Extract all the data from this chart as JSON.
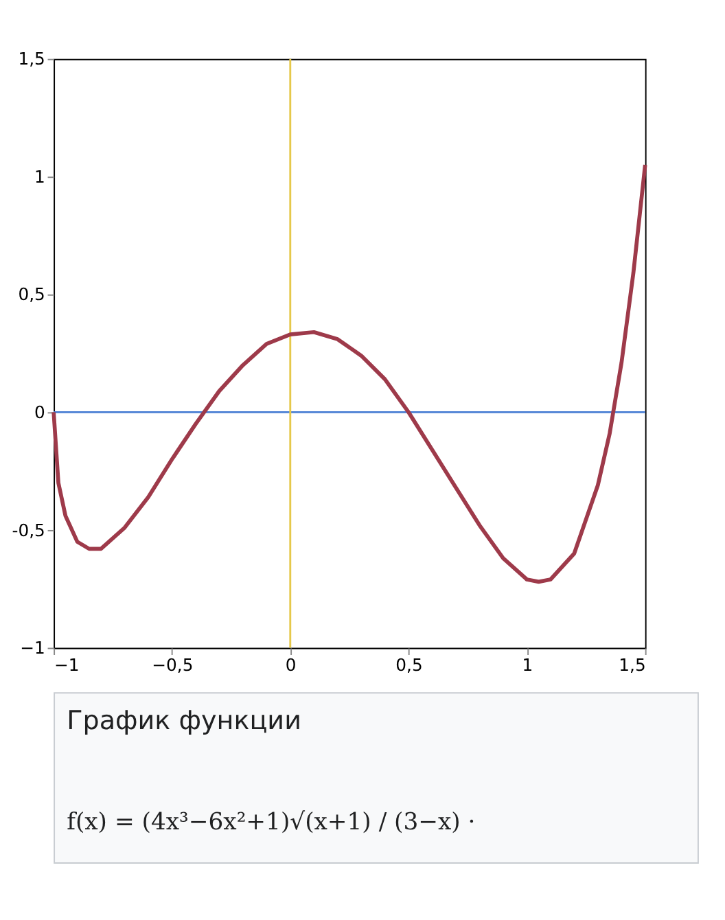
{
  "chart_data": {
    "type": "line",
    "title": "График функции",
    "annotations": [
      "f(x) = (4x³−6x²+1)√(x+1) / (3−x) ·"
    ],
    "series": [
      {
        "color": "#9e3a4a",
        "x": [
          -1,
          -0.98,
          -0.95,
          -0.9,
          -0.85,
          -0.8,
          -0.7,
          -0.6,
          -0.5,
          -0.4,
          -0.3,
          -0.2,
          -0.1,
          0,
          0.1,
          0.2,
          0.3,
          0.4,
          0.5,
          0.6,
          0.7,
          0.8,
          0.9,
          1.0,
          1.05,
          1.1,
          1.2,
          1.3,
          1.35,
          1.4,
          1.45,
          1.5
        ],
        "values": [
          0,
          -0.3,
          -0.44,
          -0.55,
          -0.58,
          -0.58,
          -0.49,
          -0.36,
          -0.2,
          -0.05,
          0.09,
          0.2,
          0.29,
          0.33,
          0.34,
          0.31,
          0.24,
          0.14,
          0,
          -0.16,
          -0.32,
          -0.48,
          -0.62,
          -0.71,
          -0.72,
          -0.71,
          -0.6,
          -0.31,
          -0.09,
          0.21,
          0.59,
          1.05
        ]
      }
    ],
    "xlim": [
      -1,
      1.5
    ],
    "ylim": [
      -1,
      1.5
    ],
    "xticks": [
      {
        "value": -1,
        "label": "−1"
      },
      {
        "value": -0.5,
        "label": "−0,5"
      },
      0,
      {
        "value": 0.5,
        "label": "0,5"
      },
      1,
      {
        "value": 1.5,
        "label": "1,5"
      }
    ],
    "yticks": [
      {
        "value": -1,
        "label": "−1"
      },
      {
        "value": -0.5,
        "label": "-0,5"
      },
      0,
      {
        "value": 0.5,
        "label": "0,5"
      },
      1,
      {
        "value": 1.5,
        "label": "1,5"
      }
    ],
    "ref_lines": [
      {
        "axis": "y",
        "value": 0,
        "color": "#4a7fd4"
      },
      {
        "axis": "x",
        "value": 0,
        "color": "#e6c84a"
      }
    ],
    "grid": false,
    "marker": "none",
    "line_style": "solid"
  }
}
